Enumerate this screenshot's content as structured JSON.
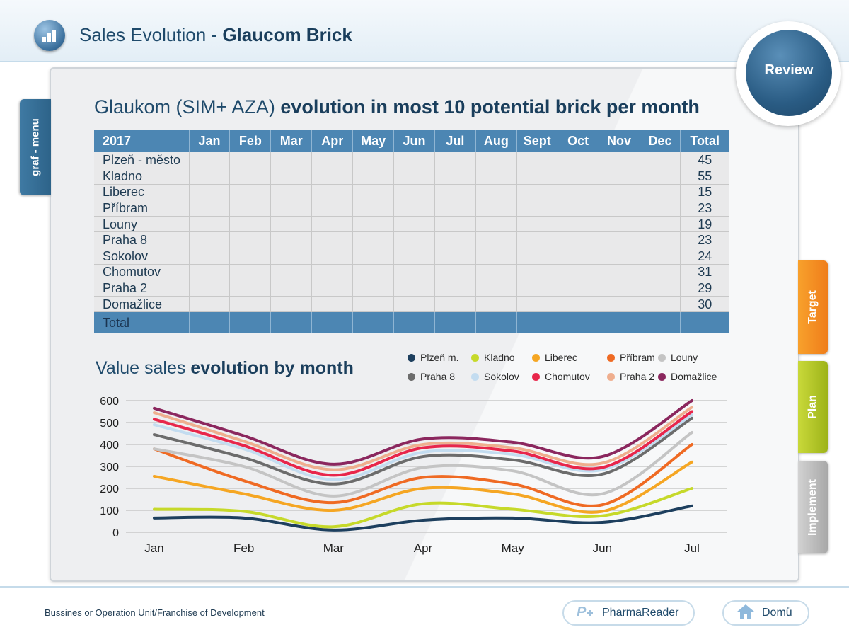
{
  "header": {
    "title_prefix": "Sales Evolution - ",
    "title_bold": "Glaucom Brick",
    "app_icon": "bar-chart-icon"
  },
  "review_label": "Review",
  "left_tab_label": "graf - menu",
  "right_tabs": [
    {
      "label": "Target",
      "color": "#f08a1f"
    },
    {
      "label": "Plan",
      "color": "#afc420"
    },
    {
      "label": "Implement",
      "color": "#b8b8b8"
    }
  ],
  "card": {
    "title_prefix": "Glaukom (SIM+ AZA) ",
    "title_bold": "evolution in most 10 potential brick per month"
  },
  "table": {
    "headers": [
      "2017",
      "Jan",
      "Feb",
      "Mar",
      "Apr",
      "May",
      "Jun",
      "Jul",
      "Aug",
      "Sept",
      "Oct",
      "Nov",
      "Dec",
      "Total"
    ],
    "rows": [
      {
        "name": "Plzeň - město",
        "total": "45"
      },
      {
        "name": "Kladno",
        "total": "55"
      },
      {
        "name": "Liberec",
        "total": "15"
      },
      {
        "name": "Příbram",
        "total": "23"
      },
      {
        "name": "Louny",
        "total": "19"
      },
      {
        "name": "Praha 8",
        "total": "23"
      },
      {
        "name": "Sokolov",
        "total": "24"
      },
      {
        "name": "Chomutov",
        "total": "31"
      },
      {
        "name": "Praha 2",
        "total": "29"
      },
      {
        "name": "Domažlice",
        "total": "30"
      }
    ],
    "total_label": "Total"
  },
  "chart_title": {
    "prefix": "Value sales ",
    "bold": "evolution by month"
  },
  "chart_data": {
    "type": "line",
    "categories": [
      "Jan",
      "Feb",
      "Mar",
      "Apr",
      "May",
      "Jun",
      "Jul"
    ],
    "ylim": [
      0,
      600
    ],
    "yticks": [
      0,
      100,
      200,
      300,
      400,
      500,
      600
    ],
    "grid": true,
    "legend_position": "top-right",
    "series": [
      {
        "name": "Plzeň m.",
        "color": "#1d3f5e",
        "values": [
          65,
          65,
          10,
          55,
          65,
          45,
          120
        ]
      },
      {
        "name": "Kladno",
        "color": "#c6d92a",
        "values": [
          105,
          95,
          25,
          130,
          105,
          75,
          200
        ]
      },
      {
        "name": "Liberec",
        "color": "#f5a623",
        "values": [
          255,
          175,
          100,
          200,
          175,
          95,
          320
        ]
      },
      {
        "name": "Příbram",
        "color": "#ef6a23",
        "values": [
          380,
          235,
          135,
          250,
          220,
          125,
          400
        ]
      },
      {
        "name": "Louny",
        "color": "#c4c4c4",
        "values": [
          380,
          300,
          165,
          295,
          280,
          175,
          455
        ]
      },
      {
        "name": "Praha 8",
        "color": "#6c6c6c",
        "values": [
          445,
          340,
          220,
          345,
          330,
          265,
          520
        ]
      },
      {
        "name": "Sokolov",
        "color": "#c3dcf0",
        "values": [
          490,
          380,
          240,
          365,
          355,
          285,
          535
        ]
      },
      {
        "name": "Chomutov",
        "color": "#e8264b",
        "values": [
          515,
          395,
          260,
          385,
          370,
          295,
          550
        ]
      },
      {
        "name": "Praha 2",
        "color": "#efae8e",
        "values": [
          545,
          415,
          285,
          400,
          385,
          315,
          570
        ]
      },
      {
        "name": "Domažlice",
        "color": "#8b275e",
        "values": [
          565,
          440,
          310,
          425,
          410,
          345,
          600
        ]
      }
    ]
  },
  "footer": {
    "text": "Bussines or Operation Unit/Franchise of Development",
    "pharma_label": "PharmaReader",
    "home_label": "Domů"
  }
}
